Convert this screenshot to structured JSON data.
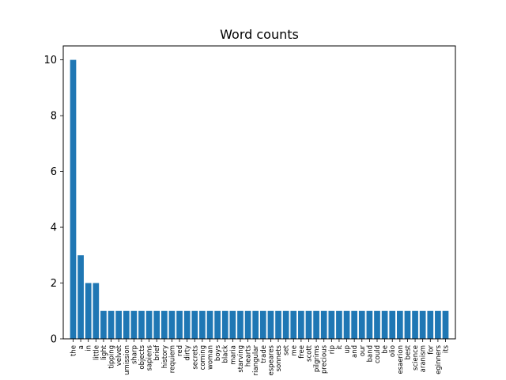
{
  "chart_data": {
    "type": "bar",
    "title": "Word counts",
    "xlabel": "",
    "ylabel": "",
    "ylim": [
      0,
      10.5
    ],
    "yticks": [
      0,
      2,
      4,
      6,
      8,
      10
    ],
    "bar_color": "#1f77b4",
    "grid": false,
    "categories": [
      "the",
      "a",
      "in",
      "little",
      "light",
      "tipping",
      "velvet",
      "umission",
      "sharp",
      "objects",
      "sapiens",
      "brief",
      "history",
      "requiem",
      "red",
      "dirty",
      "secrets",
      "coming",
      "woman",
      "boys",
      "black",
      "maria",
      "starving",
      "hearts",
      "riangular",
      "trade",
      "espeares",
      "sonnets",
      "set",
      "me",
      "free",
      "scott",
      "pilgrims",
      "precious",
      "rip",
      "it",
      "up",
      "and",
      "our",
      "band",
      "could",
      "be",
      "olio",
      "esaerion",
      "best",
      "science",
      "aranism",
      "for",
      "eginners",
      "its"
    ],
    "values": [
      10,
      3,
      2,
      2,
      1,
      1,
      1,
      1,
      1,
      1,
      1,
      1,
      1,
      1,
      1,
      1,
      1,
      1,
      1,
      1,
      1,
      1,
      1,
      1,
      1,
      1,
      1,
      1,
      1,
      1,
      1,
      1,
      1,
      1,
      1,
      1,
      1,
      1,
      1,
      1,
      1,
      1,
      1,
      1,
      1,
      1,
      1,
      1,
      1,
      1
    ]
  }
}
